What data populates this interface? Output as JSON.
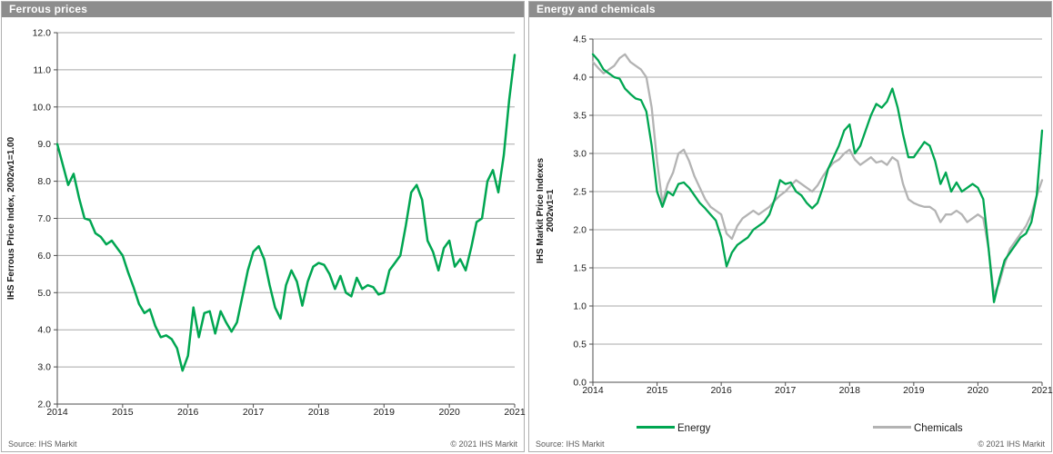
{
  "colors": {
    "header_bg": "#8d8d8d",
    "header_text": "#ffffff",
    "panel_border": "#b0b0b0",
    "gridline": "#a8a8a8",
    "axis": "#4d4d4d",
    "tick_text": "#1a1a1a",
    "footer_text": "#595959",
    "energy_green": "#00a651",
    "chemicals_gray": "#b3b3b3"
  },
  "chart_data": [
    {
      "type": "line",
      "title": "Ferrous prices",
      "ylabel": "IHS Ferrous Price Index, 2002w1=1.00",
      "xlabel": "",
      "source": "Source:  IHS Markit",
      "copyright": "© 2021 IHS Markit",
      "xlim": [
        2014,
        2021
      ],
      "ylim": [
        2.0,
        12.0
      ],
      "ytick_step": 1.0,
      "ytick_decimals": 1,
      "xticks": [
        2014,
        2015,
        2016,
        2017,
        2018,
        2019,
        2020,
        2021
      ],
      "x_start": 2014,
      "points_per_year": 12,
      "grid": "horizontal",
      "legend_position": "none",
      "series": [
        {
          "name": "IHS Ferrous Price Index",
          "color": "#00a651",
          "stroke_width": 2.5,
          "values": [
            9.0,
            8.45,
            7.9,
            8.2,
            7.55,
            7.0,
            6.95,
            6.6,
            6.5,
            6.3,
            6.4,
            6.2,
            6.0,
            5.55,
            5.15,
            4.7,
            4.45,
            4.55,
            4.1,
            3.8,
            3.85,
            3.75,
            3.5,
            2.9,
            3.3,
            4.6,
            3.8,
            4.45,
            4.5,
            3.9,
            4.5,
            4.2,
            3.95,
            4.2,
            4.9,
            5.6,
            6.1,
            6.25,
            5.9,
            5.2,
            4.6,
            4.3,
            5.2,
            5.6,
            5.3,
            4.65,
            5.3,
            5.7,
            5.8,
            5.75,
            5.5,
            5.1,
            5.45,
            5.0,
            4.9,
            5.4,
            5.1,
            5.2,
            5.15,
            4.95,
            5.0,
            5.6,
            5.8,
            6.0,
            6.8,
            7.7,
            7.9,
            7.5,
            6.4,
            6.1,
            5.6,
            6.2,
            6.4,
            5.7,
            5.9,
            5.6,
            6.2,
            6.9,
            7.0,
            8.0,
            8.3,
            7.7,
            8.7,
            10.2,
            11.4
          ]
        }
      ]
    },
    {
      "type": "line",
      "title": "Energy and chemicals",
      "ylabel": "IHS Markit Price Indexes",
      "ylabel_line2": "2002w1=1",
      "xlabel": "",
      "source": "Source:  IHS Markit",
      "copyright": "© 2021 IHS Markit",
      "xlim": [
        2014,
        2021
      ],
      "ylim": [
        0.0,
        4.5
      ],
      "ytick_step": 0.5,
      "ytick_decimals": 1,
      "xticks": [
        2014,
        2015,
        2016,
        2017,
        2018,
        2019,
        2020,
        2021
      ],
      "x_start": 2014,
      "points_per_year": 12,
      "grid": "horizontal",
      "legend_position": "bottom",
      "series": [
        {
          "name": "Energy",
          "color": "#00a651",
          "stroke_width": 2.3,
          "values": [
            4.3,
            4.22,
            4.1,
            4.05,
            4.0,
            3.98,
            3.85,
            3.78,
            3.72,
            3.7,
            3.55,
            3.1,
            2.5,
            2.3,
            2.5,
            2.45,
            2.6,
            2.62,
            2.55,
            2.45,
            2.35,
            2.28,
            2.2,
            2.12,
            1.9,
            1.52,
            1.7,
            1.8,
            1.85,
            1.9,
            2.0,
            2.05,
            2.1,
            2.2,
            2.4,
            2.65,
            2.6,
            2.62,
            2.5,
            2.45,
            2.35,
            2.28,
            2.35,
            2.55,
            2.8,
            2.95,
            3.1,
            3.3,
            3.38,
            3.0,
            3.1,
            3.3,
            3.5,
            3.65,
            3.6,
            3.68,
            3.85,
            3.6,
            3.25,
            2.95,
            2.95,
            3.05,
            3.15,
            3.1,
            2.9,
            2.6,
            2.75,
            2.5,
            2.62,
            2.5,
            2.55,
            2.6,
            2.55,
            2.4,
            1.75,
            1.05,
            1.35,
            1.6,
            1.7,
            1.8,
            1.9,
            1.95,
            2.1,
            2.45,
            3.3
          ]
        },
        {
          "name": "Chemicals",
          "color": "#b3b3b3",
          "stroke_width": 2.3,
          "values": [
            4.2,
            4.12,
            4.05,
            4.1,
            4.15,
            4.25,
            4.3,
            4.2,
            4.15,
            4.1,
            4.0,
            3.6,
            2.9,
            2.35,
            2.6,
            2.75,
            3.0,
            3.05,
            2.9,
            2.7,
            2.55,
            2.4,
            2.3,
            2.25,
            2.2,
            1.95,
            1.88,
            2.05,
            2.15,
            2.2,
            2.25,
            2.2,
            2.25,
            2.3,
            2.38,
            2.45,
            2.5,
            2.58,
            2.65,
            2.6,
            2.55,
            2.5,
            2.58,
            2.7,
            2.8,
            2.88,
            2.92,
            3.0,
            3.05,
            2.92,
            2.85,
            2.9,
            2.95,
            2.88,
            2.9,
            2.85,
            2.95,
            2.9,
            2.6,
            2.4,
            2.35,
            2.32,
            2.3,
            2.3,
            2.25,
            2.1,
            2.2,
            2.2,
            2.25,
            2.2,
            2.1,
            2.15,
            2.2,
            2.15,
            1.75,
            1.15,
            1.3,
            1.55,
            1.75,
            1.85,
            1.95,
            2.05,
            2.2,
            2.45,
            2.65
          ]
        }
      ]
    }
  ]
}
